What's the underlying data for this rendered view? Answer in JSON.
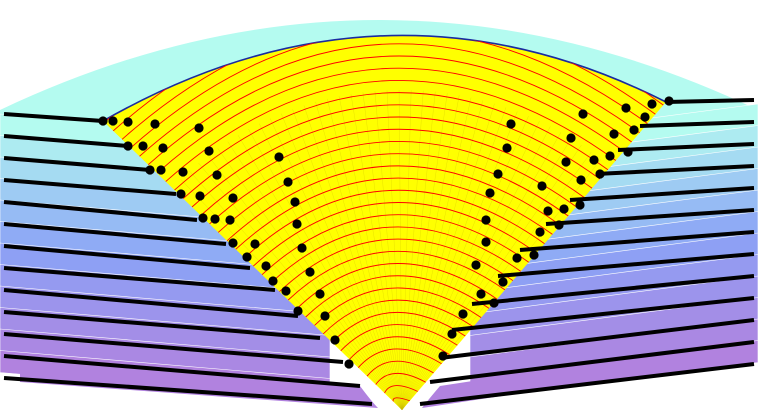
{
  "figure": {
    "layer_count": 12,
    "colors": {
      "background": "#ffffff",
      "layer_top": "#b4fbf0",
      "layer_middle": "#8ba3f6",
      "layer_bottom": "#b182df",
      "layer_edge_line": "#ffffff",
      "wedge_fill": "#ffff00",
      "wedge_shade": "#f2e400",
      "wedge_grid": "#c9b800",
      "arc_line": "#ff0000",
      "outer_arc": "#1a2aa0",
      "strand": "#000000",
      "node": "#000000"
    }
  }
}
